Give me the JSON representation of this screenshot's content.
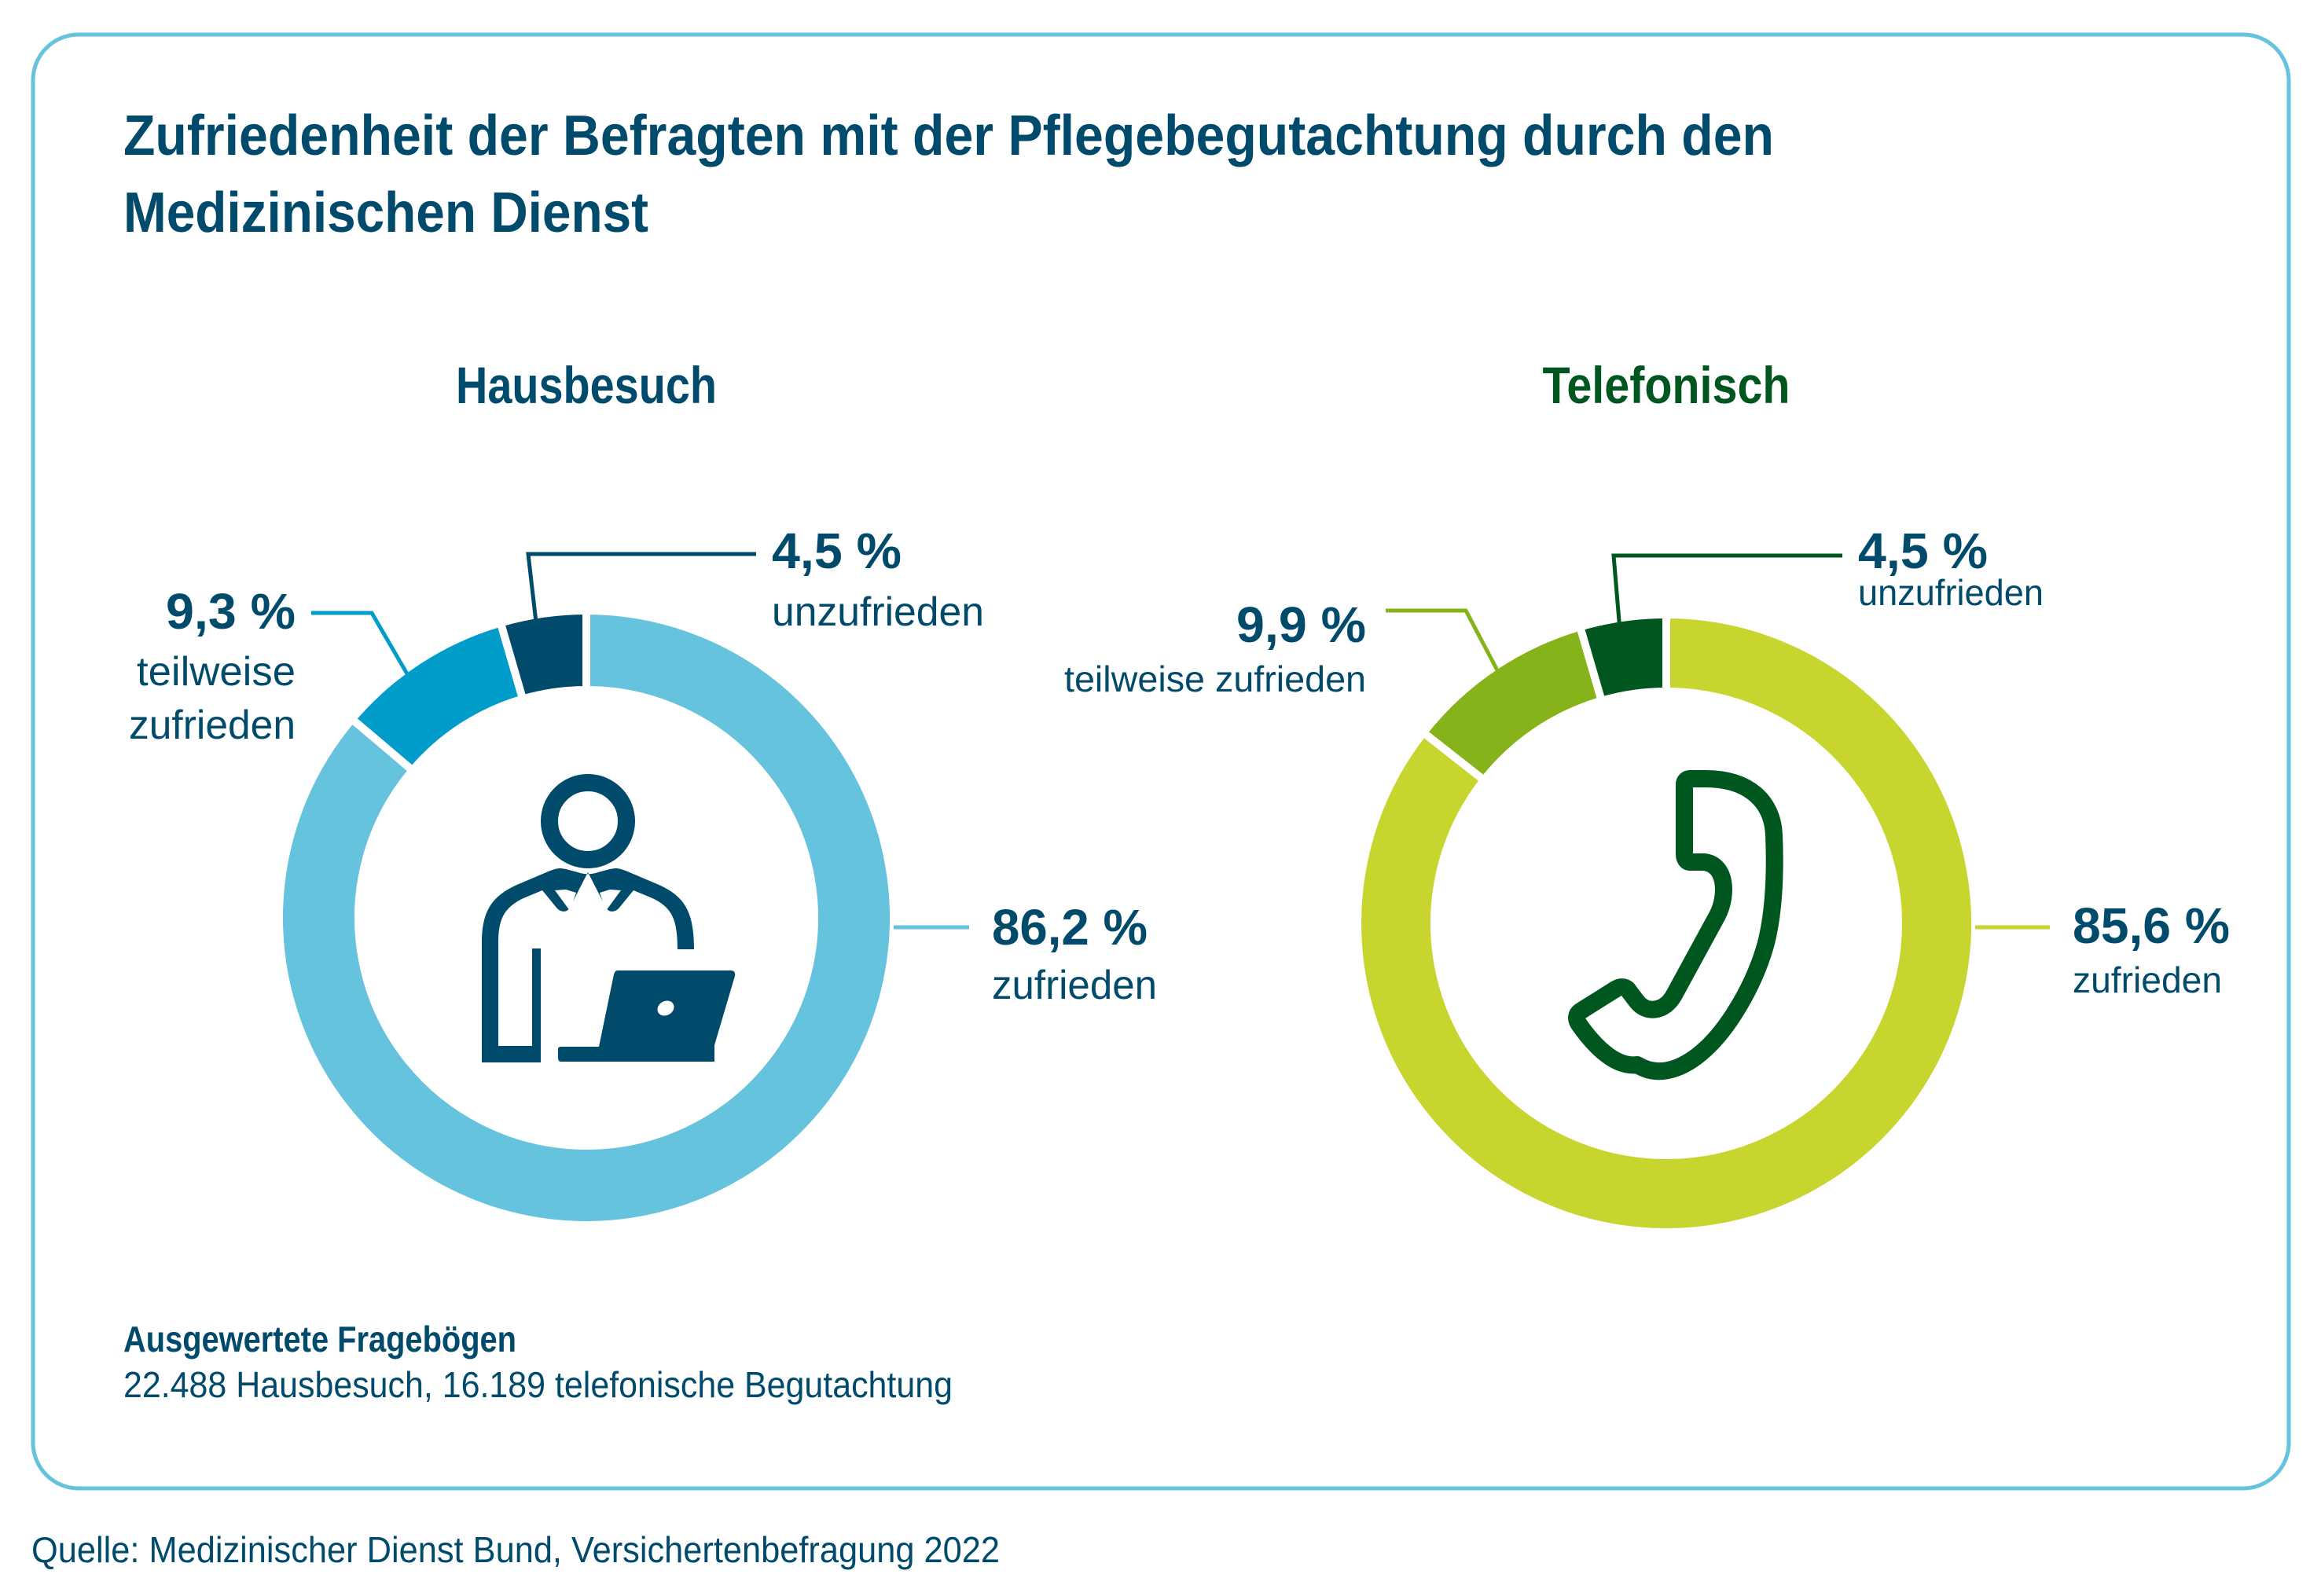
{
  "title_lines": [
    "Zufriedenheit der Befragten mit der Pflegebegutachtung durch den",
    "Medizinischen Dienst"
  ],
  "note": {
    "heading": "Ausgewertete Fragebögen",
    "body": "22.488 Hausbesuch, 16.189 telefonische Begutachtung"
  },
  "source": "Quelle: Medizinischer Dienst Bund, Versichertenbefragung 2022",
  "colors": {
    "text": "#004a6b",
    "card_border": "#65c3dd",
    "hausbesuch": {
      "zufrieden": "#65c3dd",
      "teilweise": "#009cca",
      "unzufrieden": "#004b6b",
      "title": "#004a6b"
    },
    "telefonisch": {
      "zufrieden": "#c8d52f",
      "teilweise": "#86b31a",
      "unzufrieden": "#00561f",
      "title": "#00561f"
    }
  },
  "charts": [
    {
      "title": "Hausbesuch",
      "icon": "person-laptop-icon",
      "labels": {
        "unzufrieden": {
          "value": "4,5 %",
          "text": "unzufrieden"
        },
        "teilweise": {
          "value": "9,3 %",
          "text_lines": [
            "teilweise",
            "zufrieden"
          ]
        },
        "zufrieden": {
          "value": "86,2 %",
          "text": "zufrieden"
        }
      }
    },
    {
      "title": "Telefonisch",
      "icon": "phone-handset-icon",
      "labels": {
        "unzufrieden": {
          "value": "4,5 %",
          "text": "unzufrieden"
        },
        "teilweise": {
          "value": "9,9 %",
          "text_lines": [
            "teilweise zufrieden"
          ]
        },
        "zufrieden": {
          "value": "85,6 %",
          "text": "zufrieden"
        }
      }
    }
  ],
  "chart_data": [
    {
      "type": "pie",
      "title": "Hausbesuch",
      "categories": [
        "zufrieden",
        "teilweise zufrieden",
        "unzufrieden"
      ],
      "values": [
        86.2,
        9.3,
        4.5
      ],
      "unit": "%"
    },
    {
      "type": "pie",
      "title": "Telefonisch",
      "categories": [
        "zufrieden",
        "teilweise zufrieden",
        "unzufrieden"
      ],
      "values": [
        85.6,
        9.9,
        4.5
      ],
      "unit": "%"
    }
  ]
}
